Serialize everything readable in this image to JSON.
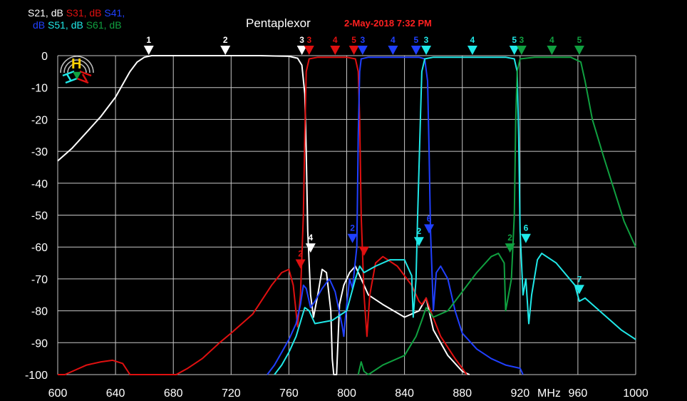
{
  "chart_data": {
    "type": "line",
    "title": "Pentaplexor",
    "timestamp": "2-May-2018 7:32 PM",
    "xlabel": "MHz",
    "ylabel": "",
    "xlim": [
      600,
      1000
    ],
    "ylim": [
      -100,
      0
    ],
    "x_ticks": [
      600,
      640,
      680,
      720,
      760,
      800,
      840,
      880,
      920,
      960,
      1000
    ],
    "y_ticks": [
      0,
      -10,
      -20,
      -30,
      -40,
      -50,
      -60,
      -70,
      -80,
      -90,
      -100
    ],
    "grid": true,
    "legend_position": "top-left",
    "legend_lines": [
      [
        {
          "text": "S21, dB ",
          "color": "#ffffff"
        },
        {
          "text": "S31, dB ",
          "color": "#e01010"
        },
        {
          "text": "S41,",
          "color": "#2040ff"
        }
      ],
      [
        {
          "text": "dB ",
          "color": "#2040ff"
        },
        {
          "text": "S51, dB ",
          "color": "#20e8e8"
        },
        {
          "text": "S61, dB",
          "color": "#10a040"
        }
      ]
    ],
    "series": [
      {
        "name": "S21, dB",
        "color": "#ffffff",
        "points": [
          [
            600,
            -33
          ],
          [
            610,
            -29
          ],
          [
            620,
            -24
          ],
          [
            630,
            -19
          ],
          [
            640,
            -13
          ],
          [
            645,
            -9
          ],
          [
            650,
            -5
          ],
          [
            655,
            -2
          ],
          [
            660,
            -0.5
          ],
          [
            665,
            0
          ],
          [
            700,
            0
          ],
          [
            740,
            0
          ],
          [
            760,
            -0.2
          ],
          [
            766,
            -0.8
          ],
          [
            769,
            -3
          ],
          [
            771,
            -12
          ],
          [
            772,
            -30
          ],
          [
            773,
            -55
          ],
          [
            775,
            -75
          ],
          [
            777,
            -82
          ],
          [
            780,
            -75
          ],
          [
            783,
            -67
          ],
          [
            786,
            -68
          ],
          [
            789,
            -80
          ],
          [
            790,
            -95
          ],
          [
            791,
            -100
          ],
          [
            793,
            -100
          ],
          [
            795,
            -78
          ],
          [
            798,
            -72
          ],
          [
            802,
            -68
          ],
          [
            806,
            -66
          ],
          [
            810,
            -70
          ],
          [
            815,
            -75
          ],
          [
            825,
            -78
          ],
          [
            840,
            -82
          ],
          [
            850,
            -80
          ],
          [
            855,
            -76
          ],
          [
            860,
            -86
          ],
          [
            870,
            -94
          ],
          [
            880,
            -99
          ],
          [
            885,
            -100
          ]
        ]
      },
      {
        "name": "S31, dB",
        "color": "#e01010",
        "points": [
          [
            600,
            -100
          ],
          [
            605,
            -100
          ],
          [
            610,
            -99
          ],
          [
            620,
            -97
          ],
          [
            630,
            -96
          ],
          [
            638,
            -95.5
          ],
          [
            645,
            -96.5
          ],
          [
            650,
            -100
          ],
          [
            682,
            -100
          ],
          [
            690,
            -98
          ],
          [
            700,
            -95
          ],
          [
            712,
            -90
          ],
          [
            720,
            -87
          ],
          [
            735,
            -81
          ],
          [
            748,
            -72
          ],
          [
            755,
            -68
          ],
          [
            760,
            -67
          ],
          [
            763,
            -72
          ],
          [
            766,
            -85
          ],
          [
            768,
            -75
          ],
          [
            770,
            -50
          ],
          [
            771,
            -25
          ],
          [
            772,
            -5
          ],
          [
            774,
            -1
          ],
          [
            780,
            -0.5
          ],
          [
            800,
            -0.5
          ],
          [
            806,
            -1
          ],
          [
            808,
            -5
          ],
          [
            809,
            -20
          ],
          [
            810,
            -50
          ],
          [
            812,
            -75
          ],
          [
            814,
            -88
          ],
          [
            816,
            -75
          ],
          [
            820,
            -65
          ],
          [
            825,
            -63
          ],
          [
            835,
            -66
          ],
          [
            845,
            -72
          ],
          [
            850,
            -77
          ],
          [
            852,
            -78
          ],
          [
            855,
            -76
          ],
          [
            858,
            -80
          ],
          [
            865,
            -88
          ],
          [
            875,
            -95
          ],
          [
            880,
            -98
          ],
          [
            883,
            -100
          ]
        ]
      },
      {
        "name": "S41, dB",
        "color": "#2040ff",
        "points": [
          [
            745,
            -100
          ],
          [
            750,
            -97
          ],
          [
            755,
            -93
          ],
          [
            760,
            -89
          ],
          [
            765,
            -84
          ],
          [
            768,
            -78
          ],
          [
            770,
            -72
          ],
          [
            772,
            -73
          ],
          [
            775,
            -79
          ],
          [
            778,
            -77
          ],
          [
            783,
            -73
          ],
          [
            788,
            -70
          ],
          [
            792,
            -74
          ],
          [
            797,
            -85
          ],
          [
            798,
            -88
          ],
          [
            800,
            -78
          ],
          [
            802,
            -70
          ],
          [
            804,
            -73
          ],
          [
            807,
            -60
          ],
          [
            808,
            -25
          ],
          [
            809,
            -5
          ],
          [
            810,
            -1
          ],
          [
            815,
            -0.5
          ],
          [
            850,
            -0.5
          ],
          [
            854,
            -1
          ],
          [
            856,
            -8
          ],
          [
            857,
            -30
          ],
          [
            858,
            -55
          ],
          [
            860,
            -80
          ],
          [
            862,
            -68
          ],
          [
            865,
            -66
          ],
          [
            870,
            -70
          ],
          [
            875,
            -80
          ],
          [
            880,
            -87
          ],
          [
            890,
            -92
          ],
          [
            900,
            -95
          ],
          [
            910,
            -97
          ],
          [
            920,
            -98
          ],
          [
            922,
            -100
          ]
        ]
      },
      {
        "name": "S51, dB",
        "color": "#20e8e8",
        "points": [
          [
            750,
            -100
          ],
          [
            755,
            -97
          ],
          [
            760,
            -93
          ],
          [
            765,
            -88
          ],
          [
            769,
            -82
          ],
          [
            771,
            -79
          ],
          [
            774,
            -80
          ],
          [
            778,
            -84
          ],
          [
            790,
            -83
          ],
          [
            800,
            -80
          ],
          [
            806,
            -70
          ],
          [
            809,
            -66
          ],
          [
            812,
            -68
          ],
          [
            820,
            -66
          ],
          [
            830,
            -64
          ],
          [
            840,
            -64
          ],
          [
            845,
            -69
          ],
          [
            846,
            -82
          ],
          [
            848,
            -70
          ],
          [
            849,
            -52
          ],
          [
            851,
            -20
          ],
          [
            852,
            -5
          ],
          [
            854,
            -1
          ],
          [
            860,
            -0.5
          ],
          [
            910,
            -0.5
          ],
          [
            916,
            -1
          ],
          [
            918,
            -5
          ],
          [
            919,
            -25
          ],
          [
            920,
            -55
          ],
          [
            922,
            -75
          ],
          [
            924,
            -70
          ],
          [
            926,
            -84
          ],
          [
            928,
            -75
          ],
          [
            932,
            -64
          ],
          [
            935,
            -62
          ],
          [
            945,
            -65
          ],
          [
            958,
            -72
          ],
          [
            961,
            -77
          ],
          [
            965,
            -76
          ],
          [
            975,
            -80
          ],
          [
            990,
            -86
          ],
          [
            1000,
            -89
          ]
        ]
      },
      {
        "name": "S61, dB",
        "color": "#10a040",
        "points": [
          [
            808,
            -100
          ],
          [
            810,
            -96
          ],
          [
            812,
            -99
          ],
          [
            815,
            -100
          ],
          [
            825,
            -97
          ],
          [
            840,
            -94
          ],
          [
            848,
            -88
          ],
          [
            852,
            -83
          ],
          [
            855,
            -79
          ],
          [
            860,
            -82
          ],
          [
            870,
            -80
          ],
          [
            880,
            -74
          ],
          [
            890,
            -68
          ],
          [
            900,
            -63
          ],
          [
            905,
            -62
          ],
          [
            909,
            -65
          ],
          [
            910,
            -80
          ],
          [
            912,
            -75
          ],
          [
            914,
            -70
          ],
          [
            916,
            -50
          ],
          [
            917,
            -20
          ],
          [
            918,
            -5
          ],
          [
            920,
            -1
          ],
          [
            930,
            -0.5
          ],
          [
            955,
            -0.5
          ],
          [
            962,
            -2
          ],
          [
            965,
            -8
          ],
          [
            970,
            -20
          ],
          [
            978,
            -32
          ],
          [
            985,
            -42
          ],
          [
            992,
            -52
          ],
          [
            1000,
            -60
          ]
        ]
      }
    ],
    "markers": [
      {
        "label": "1",
        "x": 663,
        "y": 0,
        "color": "#ffffff",
        "label_dx": 0
      },
      {
        "label": "2",
        "x": 716,
        "y": 0,
        "color": "#ffffff",
        "label_dx": 0
      },
      {
        "label": "3",
        "x": 769,
        "y": 0,
        "color": "#ffffff",
        "label_dx": 0
      },
      {
        "label": "4",
        "x": 775,
        "y": -62,
        "color": "#ffffff",
        "label_dx": 0
      },
      {
        "label": "3",
        "x": 774,
        "y": 0,
        "color": "#e01010",
        "label_dx": 0
      },
      {
        "label": "4",
        "x": 792,
        "y": 0,
        "color": "#e01010",
        "label_dx": 0
      },
      {
        "label": "5",
        "x": 805,
        "y": 0,
        "color": "#e01010",
        "label_dx": 0
      },
      {
        "label": "2",
        "x": 768,
        "y": -67,
        "color": "#e01010",
        "label_dx": 0
      },
      {
        "label": "",
        "x": 812,
        "y": -63,
        "color": "#e01010",
        "label_dx": 0
      },
      {
        "label": "3",
        "x": 811,
        "y": 0,
        "color": "#2040ff",
        "label_dx": 0
      },
      {
        "label": "4",
        "x": 832,
        "y": 0,
        "color": "#2040ff",
        "label_dx": 0
      },
      {
        "label": "5",
        "x": 848,
        "y": 0,
        "color": "#2040ff",
        "label_dx": 0
      },
      {
        "label": "2",
        "x": 804,
        "y": -59,
        "color": "#2040ff",
        "label_dx": 0
      },
      {
        "label": "6",
        "x": 857,
        "y": -56,
        "color": "#2040ff",
        "label_dx": 0
      },
      {
        "label": "3",
        "x": 855,
        "y": 0,
        "color": "#20e8e8",
        "label_dx": 0
      },
      {
        "label": "4",
        "x": 887,
        "y": 0,
        "color": "#20e8e8",
        "label_dx": 0
      },
      {
        "label": "5",
        "x": 916,
        "y": 0,
        "color": "#20e8e8",
        "label_dx": 0
      },
      {
        "label": "2",
        "x": 850,
        "y": -60,
        "color": "#20e8e8",
        "label_dx": 0
      },
      {
        "label": "6",
        "x": 924,
        "y": -59,
        "color": "#20e8e8",
        "label_dx": 0
      },
      {
        "label": "7",
        "x": 961,
        "y": -75,
        "color": "#20e8e8",
        "label_dx": 0
      },
      {
        "label": "3",
        "x": 921,
        "y": 0,
        "color": "#10a040",
        "label_dx": 0
      },
      {
        "label": "4",
        "x": 942,
        "y": 0,
        "color": "#10a040",
        "label_dx": 0
      },
      {
        "label": "5",
        "x": 961,
        "y": 0,
        "color": "#10a040",
        "label_dx": 0
      },
      {
        "label": "2",
        "x": 913,
        "y": -62,
        "color": "#10a040",
        "label_dx": 0
      }
    ]
  },
  "logo": {
    "letter": "H",
    "letter_color": "#ffd000"
  }
}
